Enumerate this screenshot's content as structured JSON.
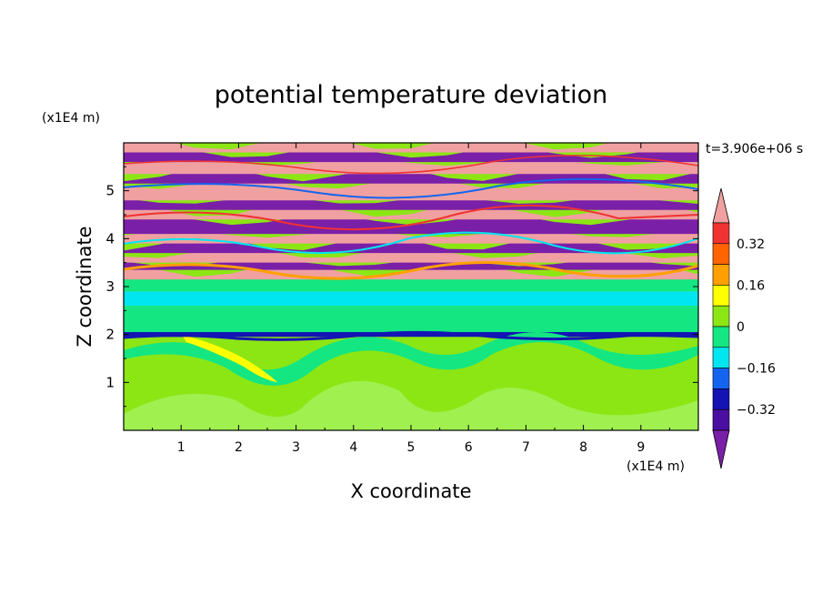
{
  "chart_data": {
    "type": "heatmap",
    "title": "potential temperature deviation",
    "xlabel": "X coordinate",
    "ylabel": "Z coordinate",
    "x_unit": "(x1E4 m)",
    "y_unit": "(x1E4 m)",
    "time_label": "t=3.906e+06 s",
    "xlim": [
      0,
      10
    ],
    "ylim": [
      0,
      6
    ],
    "x_ticks": [
      1,
      2,
      3,
      4,
      5,
      6,
      7,
      8,
      9
    ],
    "y_ticks": [
      1,
      2,
      3,
      4,
      5
    ],
    "x_tick_labels": [
      "1",
      "2",
      "3",
      "4",
      "5",
      "6",
      "7",
      "8",
      "9"
    ],
    "y_tick_labels": [
      "1",
      "2",
      "3",
      "4",
      "5"
    ],
    "colorbar": {
      "levels": [
        -0.4,
        -0.32,
        -0.24,
        -0.16,
        -0.08,
        0,
        0.08,
        0.16,
        0.24,
        0.32,
        0.4
      ],
      "tick_labels": [
        "0.32",
        "0.16",
        "0",
        "−0.16",
        "−0.32"
      ],
      "tick_values": [
        0.32,
        0.16,
        0,
        -0.16,
        -0.32
      ],
      "colors": [
        "#7a1fa8",
        "#4a0fa0",
        "#1414b4",
        "#1464f0",
        "#00e6f0",
        "#14e682",
        "#8ce614",
        "#ffff00",
        "#ffa000",
        "#ff6400",
        "#f03232",
        "#f0a0a0"
      ]
    },
    "bands": [
      {
        "z0": 0.0,
        "z1": 1.95,
        "value": 0.04
      },
      {
        "z0": 1.95,
        "z1": 2.05,
        "value": -0.28
      },
      {
        "z0": 2.05,
        "z1": 2.6,
        "value": -0.04
      },
      {
        "z0": 2.6,
        "z1": 2.9,
        "value": -0.12
      },
      {
        "z0": 2.9,
        "z1": 3.15,
        "value": -0.04
      },
      {
        "z0": 3.15,
        "z1": 3.35,
        "value": 0.42
      },
      {
        "z0": 3.35,
        "z1": 3.5,
        "value": -0.42
      },
      {
        "z0": 3.5,
        "z1": 3.7,
        "value": 0.42
      },
      {
        "z0": 3.7,
        "z1": 3.9,
        "value": -0.42
      },
      {
        "z0": 3.9,
        "z1": 4.1,
        "value": 0.42
      },
      {
        "z0": 4.1,
        "z1": 4.4,
        "value": -0.42
      },
      {
        "z0": 4.4,
        "z1": 4.6,
        "value": 0.42
      },
      {
        "z0": 4.6,
        "z1": 4.8,
        "value": -0.42
      },
      {
        "z0": 4.8,
        "z1": 5.15,
        "value": 0.42
      },
      {
        "z0": 5.15,
        "z1": 5.35,
        "value": -0.42
      },
      {
        "z0": 5.35,
        "z1": 5.6,
        "value": 0.42
      },
      {
        "z0": 5.6,
        "z1": 5.8,
        "value": -0.42
      },
      {
        "z0": 5.8,
        "z1": 6.0,
        "value": 0.42
      }
    ]
  }
}
